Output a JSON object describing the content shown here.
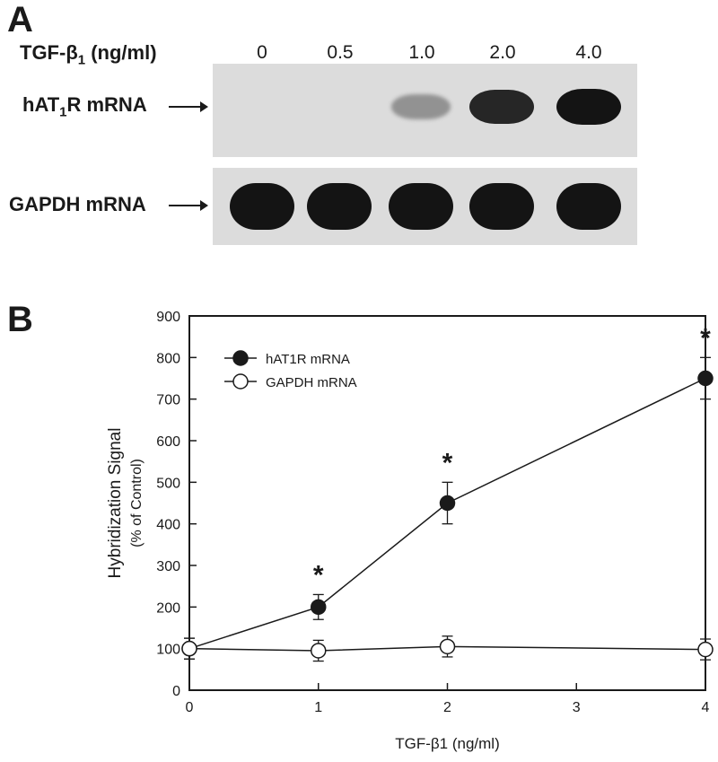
{
  "panel_a": {
    "letter": "A",
    "treatment_label": "TGF-β",
    "treatment_sub": "1",
    "treatment_unit": " (ng/ml)",
    "concentrations": [
      "0",
      "0.5",
      "1.0",
      "2.0",
      "4.0"
    ],
    "blot_rows": [
      {
        "label_pre": "hAT",
        "label_sub": "1",
        "label_post": "R mRNA",
        "band_intensity": [
          0,
          0,
          0.3,
          0.9,
          1.0
        ]
      },
      {
        "label_pre": "GAPDH mRNA",
        "label_sub": "",
        "label_post": "",
        "band_intensity": [
          1.0,
          1.0,
          1.0,
          1.0,
          1.0
        ]
      }
    ]
  },
  "panel_b": {
    "letter": "B"
  },
  "chart_data": {
    "type": "line",
    "xlabel": "TGF-β1 (ng/ml)",
    "ylabel": "Hybridization Signal",
    "ylabel_sub": "(% of Control)",
    "xlim": [
      0,
      4
    ],
    "ylim": [
      0,
      900
    ],
    "xticks": [
      0,
      1,
      2,
      3,
      4
    ],
    "yticks": [
      0,
      100,
      200,
      300,
      400,
      500,
      600,
      700,
      800,
      900
    ],
    "legend_position": "top-left",
    "series": [
      {
        "name": "hAT1R mRNA",
        "marker": "filled",
        "x": [
          0,
          1,
          2,
          4
        ],
        "y": [
          100,
          200,
          450,
          750
        ],
        "err": [
          25,
          30,
          50,
          50
        ],
        "significant": [
          false,
          true,
          true,
          true
        ]
      },
      {
        "name": "GAPDH mRNA",
        "marker": "open",
        "x": [
          0,
          1,
          2,
          4
        ],
        "y": [
          100,
          95,
          105,
          98
        ],
        "err": [
          25,
          25,
          25,
          25
        ],
        "significant": [
          false,
          false,
          false,
          false
        ]
      }
    ],
    "significance_mark": "*"
  }
}
